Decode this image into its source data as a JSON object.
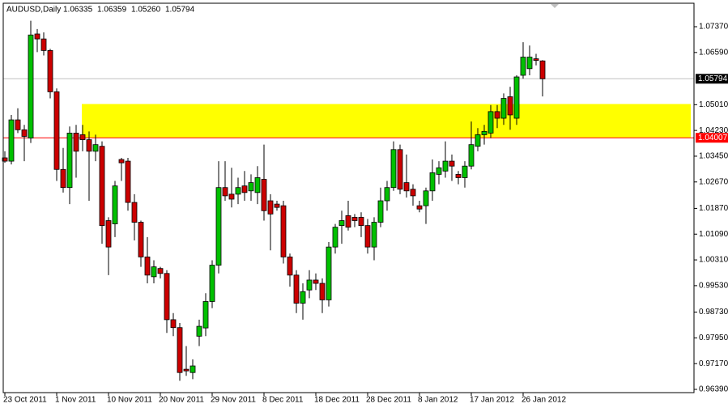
{
  "chart_data": {
    "type": "candlestick",
    "title": "AUDUSD,Daily",
    "title_values": [
      "1.06335",
      "1.06359",
      "1.05260",
      "1.05794"
    ],
    "categories": [
      "23 Oct 2011",
      null,
      null,
      null,
      null,
      null,
      null,
      null,
      "1 Nov 2011",
      null,
      null,
      null,
      null,
      null,
      null,
      null,
      "10 Nov 2011",
      null,
      null,
      null,
      null,
      null,
      null,
      null,
      "20 Nov 2011",
      null,
      null,
      null,
      null,
      null,
      null,
      null,
      "29 Nov 2011",
      null,
      null,
      null,
      null,
      null,
      null,
      null,
      "8 Dec 2011",
      null,
      null,
      null,
      null,
      null,
      null,
      null,
      "18 Dec 2011",
      null,
      null,
      null,
      null,
      null,
      null,
      null,
      "28 Dec 2011",
      null,
      null,
      null,
      null,
      null,
      null,
      null,
      "8 Jan 2012",
      null,
      null,
      null,
      null,
      null,
      null,
      null,
      "17 Jan 2012",
      null,
      null,
      null,
      null,
      null,
      null,
      null,
      "26 Jan 2012",
      null,
      null,
      null
    ],
    "open": [
      1.034,
      1.033,
      1.0455,
      1.0425,
      1.04,
      1.0715,
      1.07,
      1.0665,
      1.054,
      1.0305,
      1.025,
      1.0415,
      1.041,
      1.0395,
      1.036,
      1.0375,
      1.015,
      1.014,
      1.0335,
      1.033,
      1.0205,
      1.0145,
      1.004,
      0.998,
      1.0005,
      0.999,
      0.985,
      0.9826,
      0.97,
      0.969,
      0.98,
      0.9825,
      0.9905,
      1.0015,
      1.025,
      1.023,
      1.023,
      1.0255,
      1.024,
      1.0235,
      1.0275,
      1.021,
      1.02,
      1.0195,
      1.004,
      0.9985,
      0.99,
      0.994,
      0.997,
      0.996,
      0.991,
      1.007,
      1.0135,
      1.0165,
      1.016,
      1.016,
      1.0135,
      1.007,
      1.0145,
      1.021,
      1.025,
      1.0365,
      1.0265,
      1.0245,
      1.0195,
      1.0195,
      1.024,
      1.029,
      1.03,
      1.033,
      1.029,
      1.028,
      1.0315,
      1.0375,
      1.041,
      1.0415,
      1.048,
      1.046,
      1.0525,
      1.046,
      1.059,
      1.061,
      1.064,
      1.06335
    ],
    "high": [
      1.036,
      1.047,
      1.049,
      1.044,
      1.0755,
      1.073,
      1.072,
      1.067,
      1.055,
      1.037,
      1.0435,
      1.044,
      1.044,
      1.042,
      1.041,
      1.039,
      1.016,
      1.027,
      1.034,
      1.034,
      1.023,
      1.015,
      1.01,
      1.003,
      1.001,
      1.0,
      0.987,
      0.984,
      0.977,
      0.973,
      0.985,
      0.993,
      1.003,
      1.033,
      1.033,
      1.031,
      1.028,
      1.03,
      1.029,
      1.0315,
      1.038,
      1.023,
      1.021,
      1.021,
      1.005,
      1.0,
      0.996,
      1.0,
      0.999,
      0.9975,
      1.0085,
      1.014,
      1.018,
      1.021,
      1.017,
      1.0175,
      1.0155,
      1.016,
      1.025,
      1.027,
      1.039,
      1.038,
      1.035,
      1.026,
      1.021,
      1.025,
      1.0335,
      1.033,
      1.039,
      1.035,
      1.03,
      1.033,
      1.045,
      1.043,
      1.044,
      1.05,
      1.05,
      1.0535,
      1.0555,
      1.059,
      1.069,
      1.068,
      1.0655,
      1.06359
    ],
    "low": [
      1.0325,
      1.032,
      1.0415,
      1.033,
      1.0385,
      1.066,
      1.065,
      1.052,
      1.027,
      1.0235,
      1.02,
      1.028,
      1.036,
      1.021,
      1.033,
      1.008,
      0.9985,
      1.01,
      1.027,
      1.018,
      1.009,
      1.001,
      0.996,
      0.996,
      0.9975,
      0.981,
      0.98,
      0.9665,
      0.968,
      0.967,
      0.977,
      0.98,
      0.9885,
      0.999,
      1.021,
      1.019,
      1.02,
      1.021,
      1.021,
      1.02,
      1.015,
      1.006,
      1.018,
      1.002,
      0.995,
      0.987,
      0.985,
      0.9915,
      0.994,
      0.987,
      0.989,
      1.005,
      1.008,
      1.012,
      1.013,
      1.01,
      1.005,
      1.003,
      1.013,
      1.018,
      1.024,
      1.023,
      1.022,
      1.0195,
      1.0175,
      1.014,
      1.021,
      1.026,
      1.028,
      1.027,
      1.026,
      1.025,
      1.0305,
      1.036,
      1.038,
      1.04,
      1.043,
      1.044,
      1.0425,
      1.044,
      1.058,
      1.059,
      1.062,
      1.0526
    ],
    "close": [
      1.033,
      1.0455,
      1.0425,
      1.0405,
      1.0712,
      1.07,
      1.0665,
      1.054,
      1.0305,
      1.025,
      1.0415,
      1.036,
      1.0395,
      1.036,
      1.038,
      1.0135,
      1.007,
      1.0255,
      1.0325,
      1.0205,
      1.0145,
      1.004,
      0.9985,
      1.001,
      0.999,
      0.985,
      0.9826,
      0.969,
      0.9695,
      0.971,
      0.983,
      0.9905,
      1.0015,
      1.025,
      1.0225,
      1.0215,
      1.025,
      1.0235,
      1.0265,
      1.028,
      1.018,
      1.017,
      1.019,
      1.004,
      0.9985,
      0.99,
      0.9935,
      0.997,
      0.996,
      0.991,
      1.007,
      1.013,
      1.015,
      1.013,
      1.015,
      1.0135,
      1.007,
      1.0145,
      1.021,
      1.025,
      1.0365,
      1.0245,
      1.024,
      1.0225,
      1.0185,
      1.024,
      1.0295,
      1.031,
      1.033,
      1.0315,
      1.028,
      1.0315,
      1.038,
      1.041,
      1.042,
      1.048,
      1.046,
      1.052,
      1.047,
      1.0585,
      1.0645,
      1.0645,
      1.0635,
      1.05794
    ],
    "up_color": "#00c000",
    "down_color": "#cc0000",
    "ylim": [
      0.96292,
      1.08081
    ],
    "yticks": [
      {
        "value": 1.0737,
        "label": "1.07370"
      },
      {
        "value": 1.0659,
        "label": "1.06590"
      },
      {
        "value": 1.0501,
        "label": "1.05010"
      },
      {
        "value": 1.0423,
        "label": "1.04230"
      },
      {
        "value": 1.0345,
        "label": "1.03450"
      },
      {
        "value": 1.0267,
        "label": "1.02670"
      },
      {
        "value": 1.0187,
        "label": "1.01870"
      },
      {
        "value": 1.0109,
        "label": "1.01090"
      },
      {
        "value": 1.0031,
        "label": "1.00310"
      },
      {
        "value": 0.9953,
        "label": "0.99530"
      },
      {
        "value": 0.9873,
        "label": "0.98730"
      },
      {
        "value": 0.9795,
        "label": "0.97950"
      },
      {
        "value": 0.9717,
        "label": "0.97170"
      },
      {
        "value": 0.9639,
        "label": "0.96390"
      }
    ],
    "hlines": [
      {
        "value": 1.05794,
        "label": "1.05794",
        "color": "#c0c0c0",
        "label_bg": "#000000"
      },
      {
        "value": 1.04007,
        "label": "1.04007",
        "color": "#ff0000",
        "label_bg": "#ff0000"
      }
    ],
    "zone": {
      "range": [
        1.0401,
        1.0503
      ],
      "start": 12,
      "color": "#ffff00"
    }
  }
}
